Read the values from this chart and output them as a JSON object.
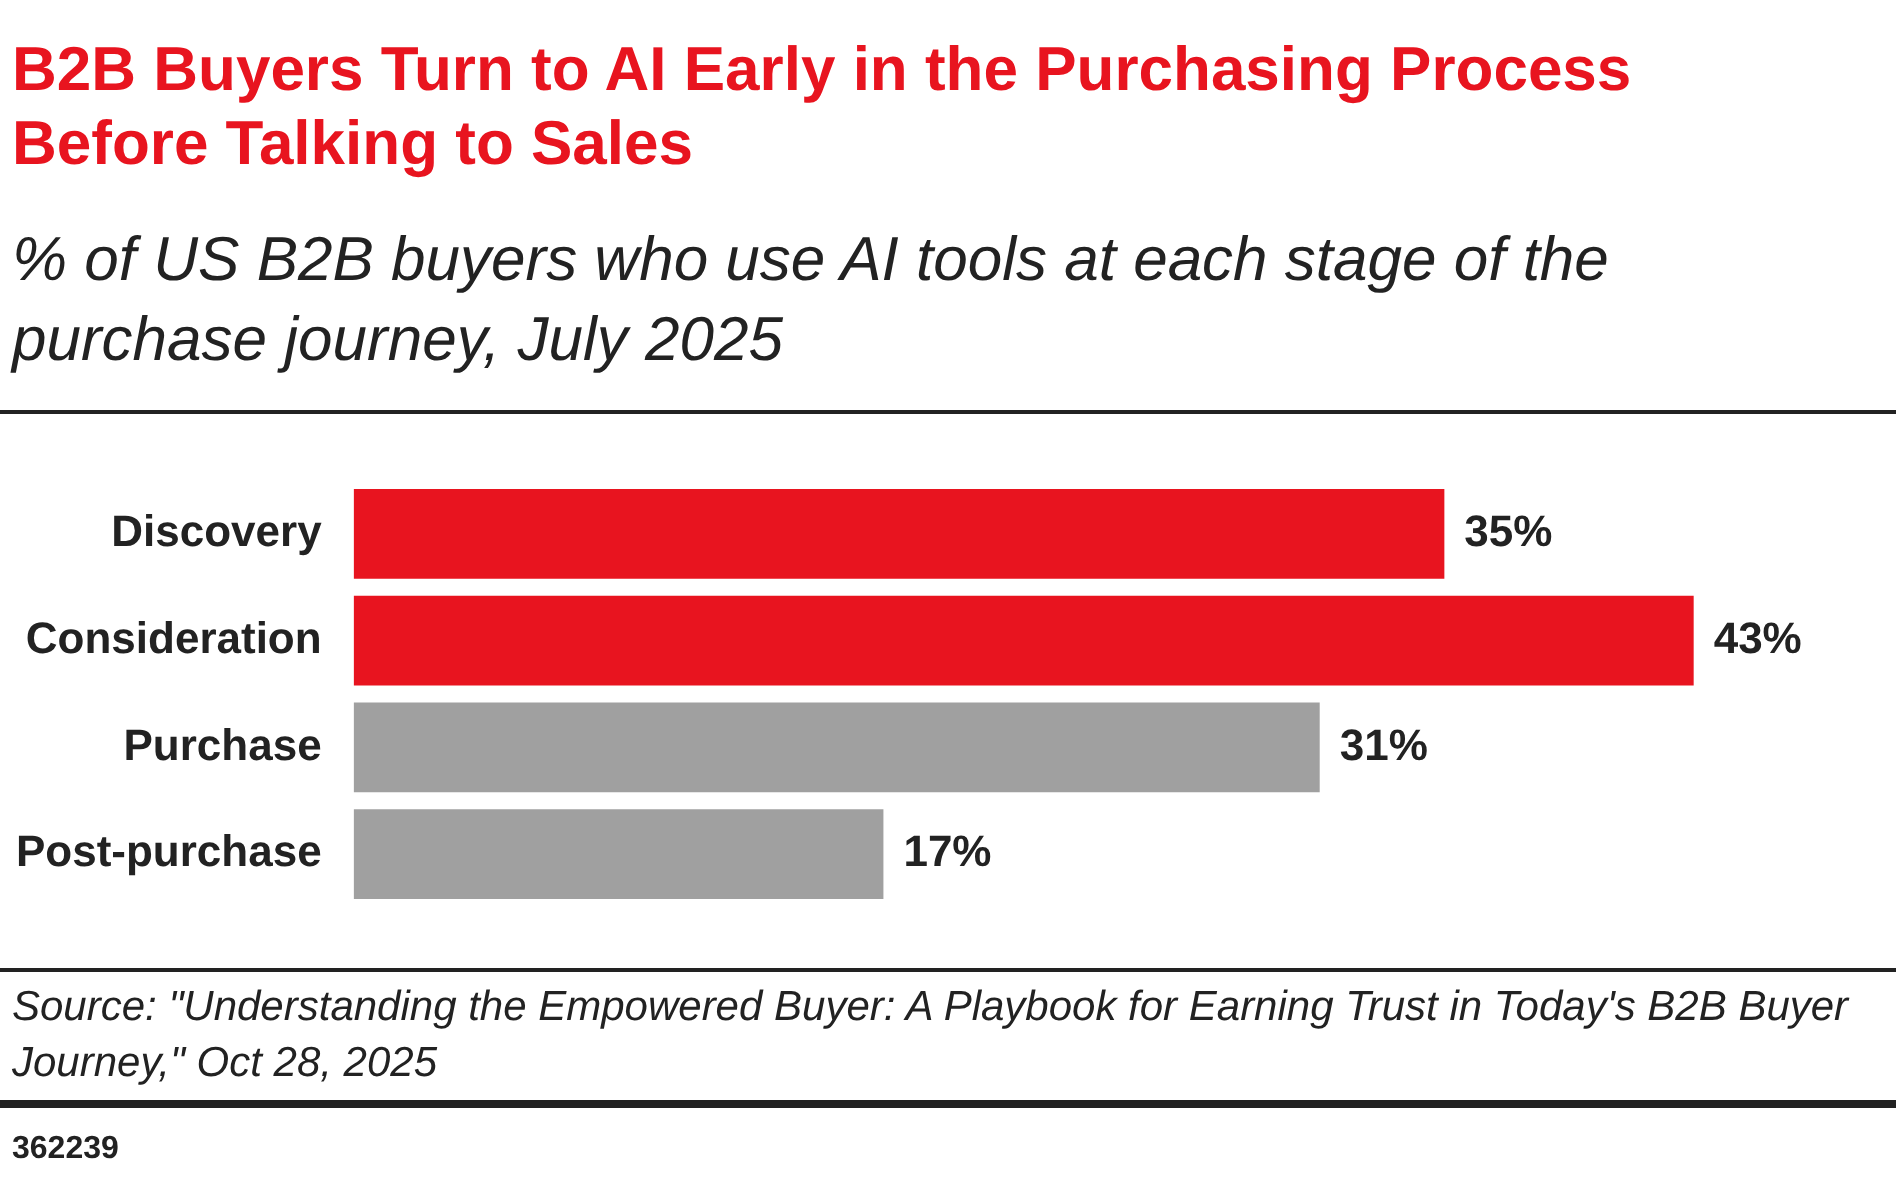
{
  "chart_data": {
    "type": "bar",
    "orientation": "horizontal",
    "title": "B2B Buyers Turn to AI Early in the Purchasing Process Before Talking to Sales",
    "subtitle": "% of US B2B buyers who use AI tools at each stage of the purchase journey, July 2025",
    "categories": [
      "Discovery",
      "Consideration",
      "Purchase",
      "Post-purchase"
    ],
    "values": [
      35,
      43,
      31,
      17
    ],
    "colors": [
      "#e8141f",
      "#e8141f",
      "#a0a0a0",
      "#a0a0a0"
    ],
    "value_labels": [
      "35%",
      "43%",
      "31%",
      "17%"
    ],
    "legend": false,
    "annotations": [
      "Source: \"Understanding the Empowered Buyer: A Playbook for Earning Trust in Today's B2B Buyer Journey,\" Oct 28, 2025",
      "362239"
    ]
  }
}
